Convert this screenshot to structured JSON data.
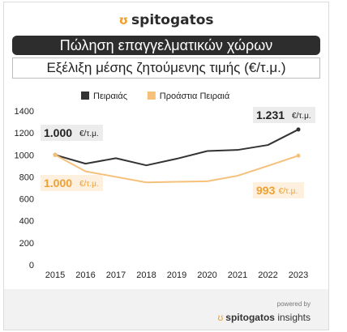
{
  "brand": {
    "name": "spitogatos",
    "logo_icon": "cat-head-icon"
  },
  "title": "Πώληση επαγγελματικών χώρων",
  "subtitle": "Εξέλιξη μέσης ζητούμενης τιμής (€/τ.μ.)",
  "footer": {
    "powered_by": "powered by",
    "brand": "spitogatos",
    "suffix": "insights"
  },
  "chart_data": {
    "type": "line",
    "x": [
      2015,
      2016,
      2017,
      2018,
      2019,
      2020,
      2021,
      2022,
      2023
    ],
    "ylim": [
      0,
      1400
    ],
    "yticks": [
      0,
      200,
      400,
      600,
      800,
      1000,
      1200,
      1400
    ],
    "grid": false,
    "legend_position": "top-center",
    "series": [
      {
        "name": "Πειραιάς",
        "color": "#333333",
        "values": [
          1000,
          920,
          970,
          905,
          965,
          1035,
          1045,
          1090,
          1231
        ]
      },
      {
        "name": "Προάστια Πειραιά",
        "color": "#f5c07a",
        "values": [
          1000,
          850,
          800,
          750,
          755,
          760,
          810,
          900,
          993
        ]
      }
    ],
    "annotations": [
      {
        "series": 0,
        "position": "start",
        "value": "1.000",
        "unit": "€/τ.μ."
      },
      {
        "series": 0,
        "position": "end",
        "value": "1.231",
        "unit": "€/τ.μ."
      },
      {
        "series": 1,
        "position": "start",
        "value": "1.000",
        "unit": "€/τ.μ."
      },
      {
        "series": 1,
        "position": "end",
        "value": "993",
        "unit": "€/τ.μ."
      }
    ]
  }
}
